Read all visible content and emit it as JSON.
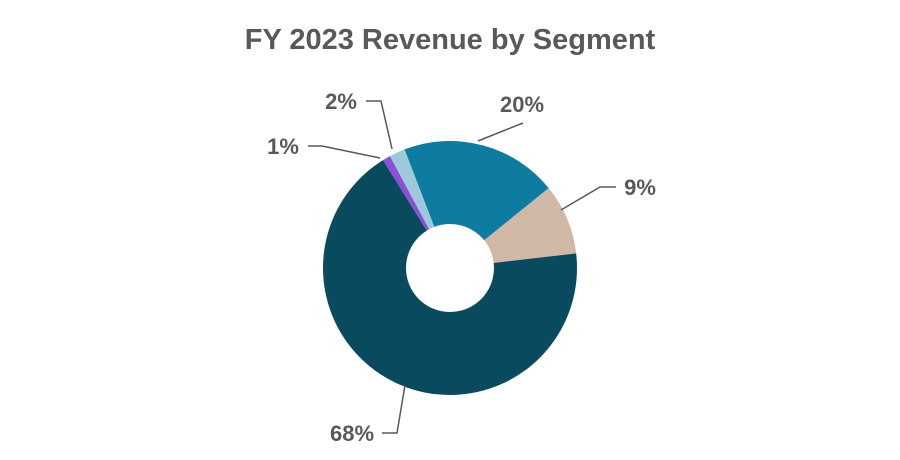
{
  "chart_data": {
    "type": "pie",
    "style": "donut",
    "title": "FY 2023 Revenue by Segment",
    "slices": [
      {
        "value": 20,
        "label": "20%",
        "color": "#0e7ba0"
      },
      {
        "value": 9,
        "label": "9%",
        "color": "#d0b8a6"
      },
      {
        "value": 68,
        "label": "68%",
        "color": "#0a4a5e"
      },
      {
        "value": 1,
        "label": "1%",
        "color": "#8e4fd8"
      },
      {
        "value": 2,
        "label": "2%",
        "color": "#9ccadb"
      }
    ],
    "legend": "none",
    "label_color": "#595959"
  }
}
